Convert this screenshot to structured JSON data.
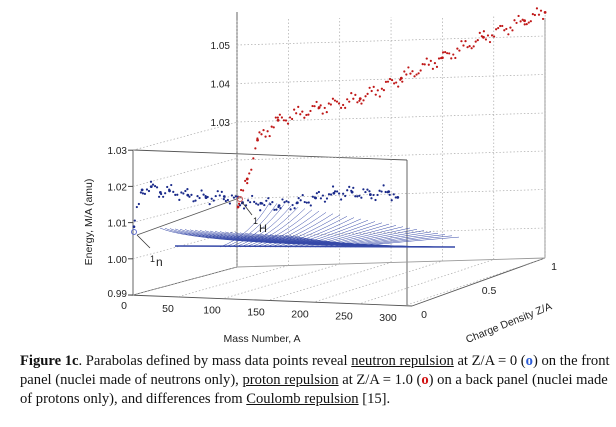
{
  "chart_data": {
    "type": "scatter",
    "projection": "3d",
    "xlabel": "Mass Number, A",
    "ylabel": "Energy, M/A (amu)",
    "zlabel": "Charge Density Z/A",
    "x_ticks": [
      "0",
      "50",
      "100",
      "150",
      "200",
      "250",
      "300"
    ],
    "y_ticks_front": [
      "0.99",
      "1.00",
      "1.01",
      "1.02",
      "1.03"
    ],
    "y_ticks_back": [
      "1.03",
      "1.04",
      "1.05"
    ],
    "z_ticks": [
      "0",
      "0.5",
      "1"
    ],
    "xlim": [
      0,
      300
    ],
    "ylim": [
      0.99,
      1.06
    ],
    "zlim": [
      0,
      1
    ],
    "grid": true,
    "annotations": [
      "1n",
      "1H"
    ],
    "series": [
      {
        "name": "neutron repulsion (Z/A = 0)",
        "color": "#1a2a8a",
        "x": [
          1,
          10,
          20,
          30,
          40,
          60,
          80,
          100,
          120,
          140,
          160,
          180,
          200,
          220,
          240,
          260,
          280,
          290
        ],
        "y": [
          1.0087,
          1.019,
          1.02,
          1.0185,
          1.019,
          1.018,
          1.0175,
          1.018,
          1.0165,
          1.0165,
          1.016,
          1.017,
          1.0185,
          1.02,
          1.0205,
          1.02,
          1.021,
          1.0195
        ]
      },
      {
        "name": "proton repulsion (Z/A = 1.0)",
        "color": "#c01818",
        "x": [
          1,
          10,
          20,
          40,
          80,
          120,
          160,
          200,
          240,
          280,
          300
        ],
        "y": [
          1.0078,
          1.015,
          1.025,
          1.03,
          1.033,
          1.035,
          1.04,
          1.045,
          1.05,
          1.054,
          1.056
        ]
      }
    ]
  },
  "caption": {
    "label": "Figure 1c",
    "t1": ". Parabolas defined by mass data points reveal ",
    "link1": "neutron repulsion",
    "t2": " at Z/A = 0 (",
    "o1": "o",
    "t3": ") on the front panel (nuclei made of neutrons only), ",
    "link2": "proton repulsion",
    "t4": " at Z/A = 1.0 (",
    "o2": "o",
    "t5": ") on a back panel (nuclei made of protons only), and differences from ",
    "link3": "Coulomb repulsion",
    "t6": " [15]."
  }
}
